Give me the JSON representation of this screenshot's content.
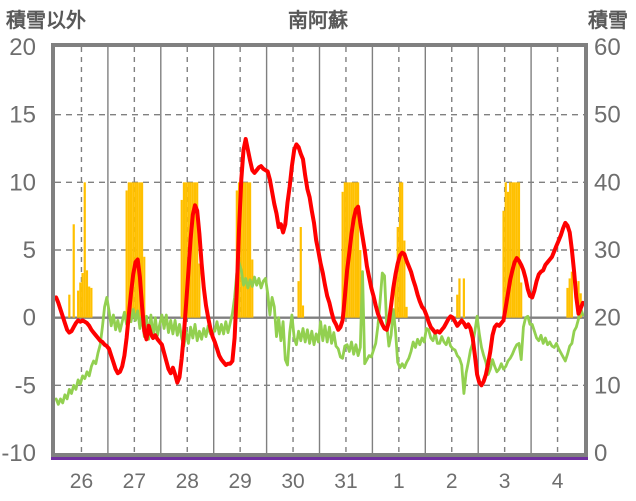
{
  "chart_data": {
    "type": "composite",
    "title": "南阿蘇",
    "x": {
      "categories": [
        "26",
        "27",
        "28",
        "29",
        "30",
        "31",
        "1",
        "2",
        "3",
        "4"
      ],
      "hours_per_day": 24
    },
    "left_axis": {
      "label": "積雪以外",
      "min": -10,
      "max": 20,
      "ticks": [
        20,
        15,
        10,
        5,
        0,
        -5,
        -10
      ]
    },
    "right_axis": {
      "label": "積雪",
      "min": 0,
      "max": 60,
      "ticks": [
        60,
        50,
        40,
        30,
        20,
        10,
        0
      ]
    },
    "grid": {
      "solid_vertical": "day boundaries",
      "dashed_vertical": "day midpoints",
      "dashed_horizontal": [
        15,
        10,
        5,
        -5
      ],
      "solid_horizontal": [
        0
      ]
    },
    "colors": {
      "red_line": "#FF0000",
      "green_line": "#92D050",
      "sunshine_bar": "#FFC000",
      "snow_line": "#7030A0",
      "grid": "#808080",
      "tick_text": "#6E6E6E",
      "title_text": "#595959",
      "background": "#FFFFFF"
    },
    "series": [
      {
        "name": "red-line",
        "type": "line",
        "axis": "left",
        "color": "#FF0000",
        "values_hourly": [
          1.5,
          1.1,
          0.6,
          0.1,
          -0.4,
          -0.9,
          -1.1,
          -1.0,
          -0.7,
          -0.4,
          -0.2,
          -0.3,
          -0.2,
          -0.3,
          -0.4,
          -0.6,
          -0.9,
          -1.1,
          -1.3,
          -1.5,
          -1.7,
          -1.8,
          -2.0,
          -2.1,
          -2.3,
          -2.8,
          -3.3,
          -3.8,
          -4.1,
          -4.0,
          -3.6,
          -2.8,
          -1.5,
          0.2,
          1.8,
          3.2,
          4.1,
          4.3,
          3.0,
          0.8,
          -1.0,
          -1.6,
          -0.6,
          -1.2,
          -1.5,
          -1.3,
          -1.6,
          -1.8,
          -2.0,
          -2.6,
          -3.2,
          -3.8,
          -4.1,
          -3.7,
          -4.2,
          -4.8,
          -4.4,
          -3.0,
          -1.2,
          1.0,
          3.4,
          5.8,
          7.6,
          8.3,
          7.9,
          6.2,
          4.0,
          2.2,
          0.9,
          0.0,
          -0.8,
          -1.4,
          -1.8,
          -2.3,
          -2.8,
          -3.1,
          -3.3,
          -3.5,
          -3.4,
          -3.4,
          -3.2,
          -1.5,
          2.0,
          6.5,
          10.2,
          12.4,
          13.2,
          12.4,
          11.6,
          10.9,
          10.7,
          10.9,
          11.1,
          11.2,
          11.0,
          10.9,
          10.8,
          10.2,
          9.3,
          8.4,
          7.7,
          6.7,
          6.9,
          6.3,
          6.9,
          8.5,
          9.7,
          11.2,
          12.4,
          12.8,
          12.6,
          12.1,
          11.7,
          10.5,
          9.5,
          8.9,
          7.9,
          7.0,
          5.7,
          4.9,
          4.0,
          3.3,
          2.4,
          1.6,
          1.1,
          0.4,
          -0.2,
          -0.5,
          -0.9,
          -0.7,
          -0.2,
          1.5,
          3.5,
          4.8,
          6.2,
          7.3,
          8.0,
          8.2,
          7.0,
          6.0,
          5.0,
          3.8,
          3.0,
          2.2,
          1.6,
          0.9,
          0.3,
          -0.1,
          -0.5,
          -0.8,
          -0.9,
          -0.3,
          0.9,
          2.2,
          3.2,
          4.0,
          4.6,
          4.8,
          4.7,
          4.2,
          3.8,
          3.4,
          2.8,
          2.3,
          1.7,
          1.2,
          0.8,
          0.6,
          0.2,
          -0.3,
          -0.7,
          -0.9,
          -1.1,
          -1.0,
          -1.1,
          -0.9,
          -0.7,
          -0.4,
          -0.1,
          0.1,
          0.0,
          -0.3,
          -0.6,
          -0.4,
          -0.2,
          -0.4,
          -0.7,
          -0.5,
          -0.8,
          -1.5,
          -2.8,
          -4.2,
          -4.8,
          -5.0,
          -4.7,
          -4.2,
          -3.4,
          -2.5,
          -1.3,
          -0.7,
          -0.5,
          -0.6,
          -0.4,
          -0.2,
          0.8,
          1.8,
          2.8,
          3.5,
          4.1,
          4.4,
          4.2,
          3.9,
          3.5,
          2.9,
          2.1,
          1.6,
          1.5,
          2.0,
          2.7,
          3.2,
          3.4,
          3.5,
          3.9,
          4.1,
          4.3,
          4.5,
          4.9,
          5.3,
          5.7,
          6.1,
          6.6,
          7.0,
          6.8,
          6.3,
          5.0,
          3.4,
          1.5,
          0.3,
          0.7,
          1.1
        ]
      },
      {
        "name": "green-line",
        "type": "line",
        "axis": "left",
        "color": "#92D050",
        "values_hourly": [
          -6.0,
          -6.4,
          -6.0,
          -6.3,
          -5.7,
          -6.0,
          -5.3,
          -5.6,
          -5.0,
          -5.3,
          -4.6,
          -4.9,
          -4.3,
          -4.5,
          -4.0,
          -4.3,
          -3.6,
          -3.2,
          -3.4,
          -2.6,
          -2.0,
          -0.7,
          0.8,
          1.5,
          0.5,
          -0.6,
          0.2,
          -0.9,
          -0.2,
          -1.0,
          -0.3,
          0.4,
          -0.5,
          0.5,
          -0.3,
          0.6,
          -0.2,
          0.5,
          -0.8,
          0.2,
          -1.4,
          0.1,
          -1.6,
          0.2,
          -1.5,
          0.0,
          -1.3,
          -0.5,
          0.2,
          -0.8,
          0.2,
          -1.1,
          -0.2,
          -1.2,
          -0.2,
          -1.3,
          -0.5,
          -1.5,
          -2.1,
          -1.0,
          -1.9,
          -0.7,
          -1.5,
          -0.5,
          -1.7,
          -1.0,
          -1.6,
          -0.8,
          -1.4,
          -0.6,
          -1.2,
          -1.0,
          -1.0,
          -0.3,
          -1.2,
          -0.5,
          -1.2,
          -0.3,
          -1.1,
          -0.4,
          0.3,
          1.5,
          3.3,
          4.1,
          3.5,
          2.4,
          2.9,
          2.2,
          2.8,
          2.3,
          3.0,
          2.4,
          2.9,
          2.2,
          2.7,
          2.9,
          1.8,
          0.2,
          1.5,
          0.8,
          -1.4,
          0.0,
          -1.7,
          -0.3,
          -3.1,
          -3.5,
          -1.1,
          0.2,
          -1.5,
          -2.0,
          -1.0,
          -1.7,
          -0.8,
          -1.8,
          -0.9,
          -1.9,
          -1.0,
          -2.0,
          -1.2,
          -1.8,
          -0.3,
          -1.7,
          -0.6,
          -1.8,
          -0.7,
          -1.9,
          -1.1,
          -2.1,
          -2.3,
          -2.9,
          -3.0,
          -2.1,
          -2.0,
          -2.5,
          -1.8,
          -2.7,
          -2.0,
          -2.8,
          -2.2,
          3.4,
          -3.4,
          -3.1,
          -2.8,
          -2.9,
          -2.4,
          -1.9,
          -0.6,
          1.2,
          3.3,
          3.1,
          -0.5,
          -2.1,
          -1.3,
          0.6,
          -1.0,
          -3.3,
          -3.7,
          -3.4,
          -3.7,
          -3.3,
          -3.0,
          -2.5,
          -1.8,
          -2.2,
          -1.6,
          -2.0,
          -1.5,
          -1.8,
          -0.8,
          -0.9,
          -1.5,
          -1.7,
          -1.1,
          -1.9,
          -1.9,
          -1.4,
          -1.8,
          -2.0,
          -1.5,
          -2.1,
          -2.3,
          -2.4,
          -2.8,
          -3.0,
          -3.5,
          -5.6,
          -4.1,
          -3.3,
          -2.4,
          -1.9,
          -1.0,
          0.1,
          -1.2,
          -2.2,
          -2.8,
          -3.3,
          -4.2,
          -3.8,
          -3.1,
          -3.6,
          -4.0,
          -3.8,
          -3.4,
          -3.8,
          -3.6,
          -3.2,
          -3.0,
          -2.7,
          -2.3,
          -2.0,
          -1.9,
          -3.1,
          -0.7,
          0.0,
          0.1,
          -0.5,
          -0.5,
          -1.0,
          -1.5,
          -1.7,
          -1.3,
          -1.9,
          -1.5,
          -2.0,
          -1.8,
          -2.1,
          -2.2,
          -1.9,
          -2.3,
          -2.6,
          -2.9,
          -3.2,
          -2.7,
          -2.1,
          -1.9,
          -1.0,
          -0.7,
          -0.1,
          0.7,
          0.2
        ]
      },
      {
        "name": "sunshine-bars",
        "type": "bar",
        "axis": "left",
        "color": "#FFC000",
        "bars_day_hour_value": [
          [
            0,
            6,
            1.7
          ],
          [
            0,
            8,
            6.9
          ],
          [
            0,
            10,
            2.0
          ],
          [
            0,
            11,
            2.6
          ],
          [
            0,
            12,
            3.3
          ],
          [
            0,
            13,
            10
          ],
          [
            0,
            14,
            3.5
          ],
          [
            0,
            15,
            2.3
          ],
          [
            0,
            16,
            2.2
          ],
          [
            1,
            8,
            9.4
          ],
          [
            1,
            9,
            10
          ],
          [
            1,
            10,
            10
          ],
          [
            1,
            11,
            10
          ],
          [
            1,
            12,
            10
          ],
          [
            1,
            13,
            10
          ],
          [
            1,
            14,
            10
          ],
          [
            1,
            15,
            10
          ],
          [
            1,
            16,
            4.5
          ],
          [
            2,
            9,
            8.7
          ],
          [
            2,
            10,
            10
          ],
          [
            2,
            11,
            10
          ],
          [
            2,
            12,
            10
          ],
          [
            2,
            13,
            10
          ],
          [
            2,
            14,
            10
          ],
          [
            2,
            15,
            10
          ],
          [
            2,
            16,
            10
          ],
          [
            2,
            17,
            4.0
          ],
          [
            3,
            10,
            9.4
          ],
          [
            3,
            11,
            10
          ],
          [
            3,
            12,
            10
          ],
          [
            3,
            13,
            10
          ],
          [
            3,
            14,
            10
          ],
          [
            3,
            15,
            10
          ],
          [
            3,
            16,
            10
          ],
          [
            3,
            17,
            4.3
          ],
          [
            4,
            14,
            2.7
          ],
          [
            4,
            15,
            6.7
          ],
          [
            4,
            16,
            0.9
          ],
          [
            5,
            10,
            9.3
          ],
          [
            5,
            11,
            10
          ],
          [
            5,
            12,
            10
          ],
          [
            5,
            13,
            10
          ],
          [
            5,
            14,
            10
          ],
          [
            5,
            15,
            10
          ],
          [
            5,
            16,
            10
          ],
          [
            5,
            17,
            10
          ],
          [
            5,
            18,
            5.0
          ],
          [
            6,
            10,
            3.3
          ],
          [
            6,
            11,
            6.7
          ],
          [
            6,
            12,
            10
          ],
          [
            6,
            13,
            10
          ],
          [
            6,
            14,
            5.7
          ],
          [
            6,
            15,
            0.8
          ],
          [
            7,
            14,
            1.7
          ],
          [
            7,
            15,
            2.9
          ],
          [
            7,
            17,
            2.9
          ],
          [
            8,
            11,
            7.9
          ],
          [
            8,
            12,
            10
          ],
          [
            8,
            13,
            9.3
          ],
          [
            8,
            14,
            10
          ],
          [
            8,
            15,
            10
          ],
          [
            8,
            16,
            10
          ],
          [
            8,
            17,
            10
          ],
          [
            8,
            18,
            10
          ],
          [
            8,
            19,
            2.6
          ],
          [
            9,
            16,
            2.2
          ],
          [
            9,
            17,
            2.9
          ],
          [
            9,
            18,
            3.4
          ],
          [
            9,
            21,
            2.7
          ],
          [
            9,
            22,
            1.8
          ]
        ]
      },
      {
        "name": "snow-line",
        "type": "line",
        "axis": "right",
        "color": "#7030A0",
        "constant_value": 0
      }
    ]
  }
}
